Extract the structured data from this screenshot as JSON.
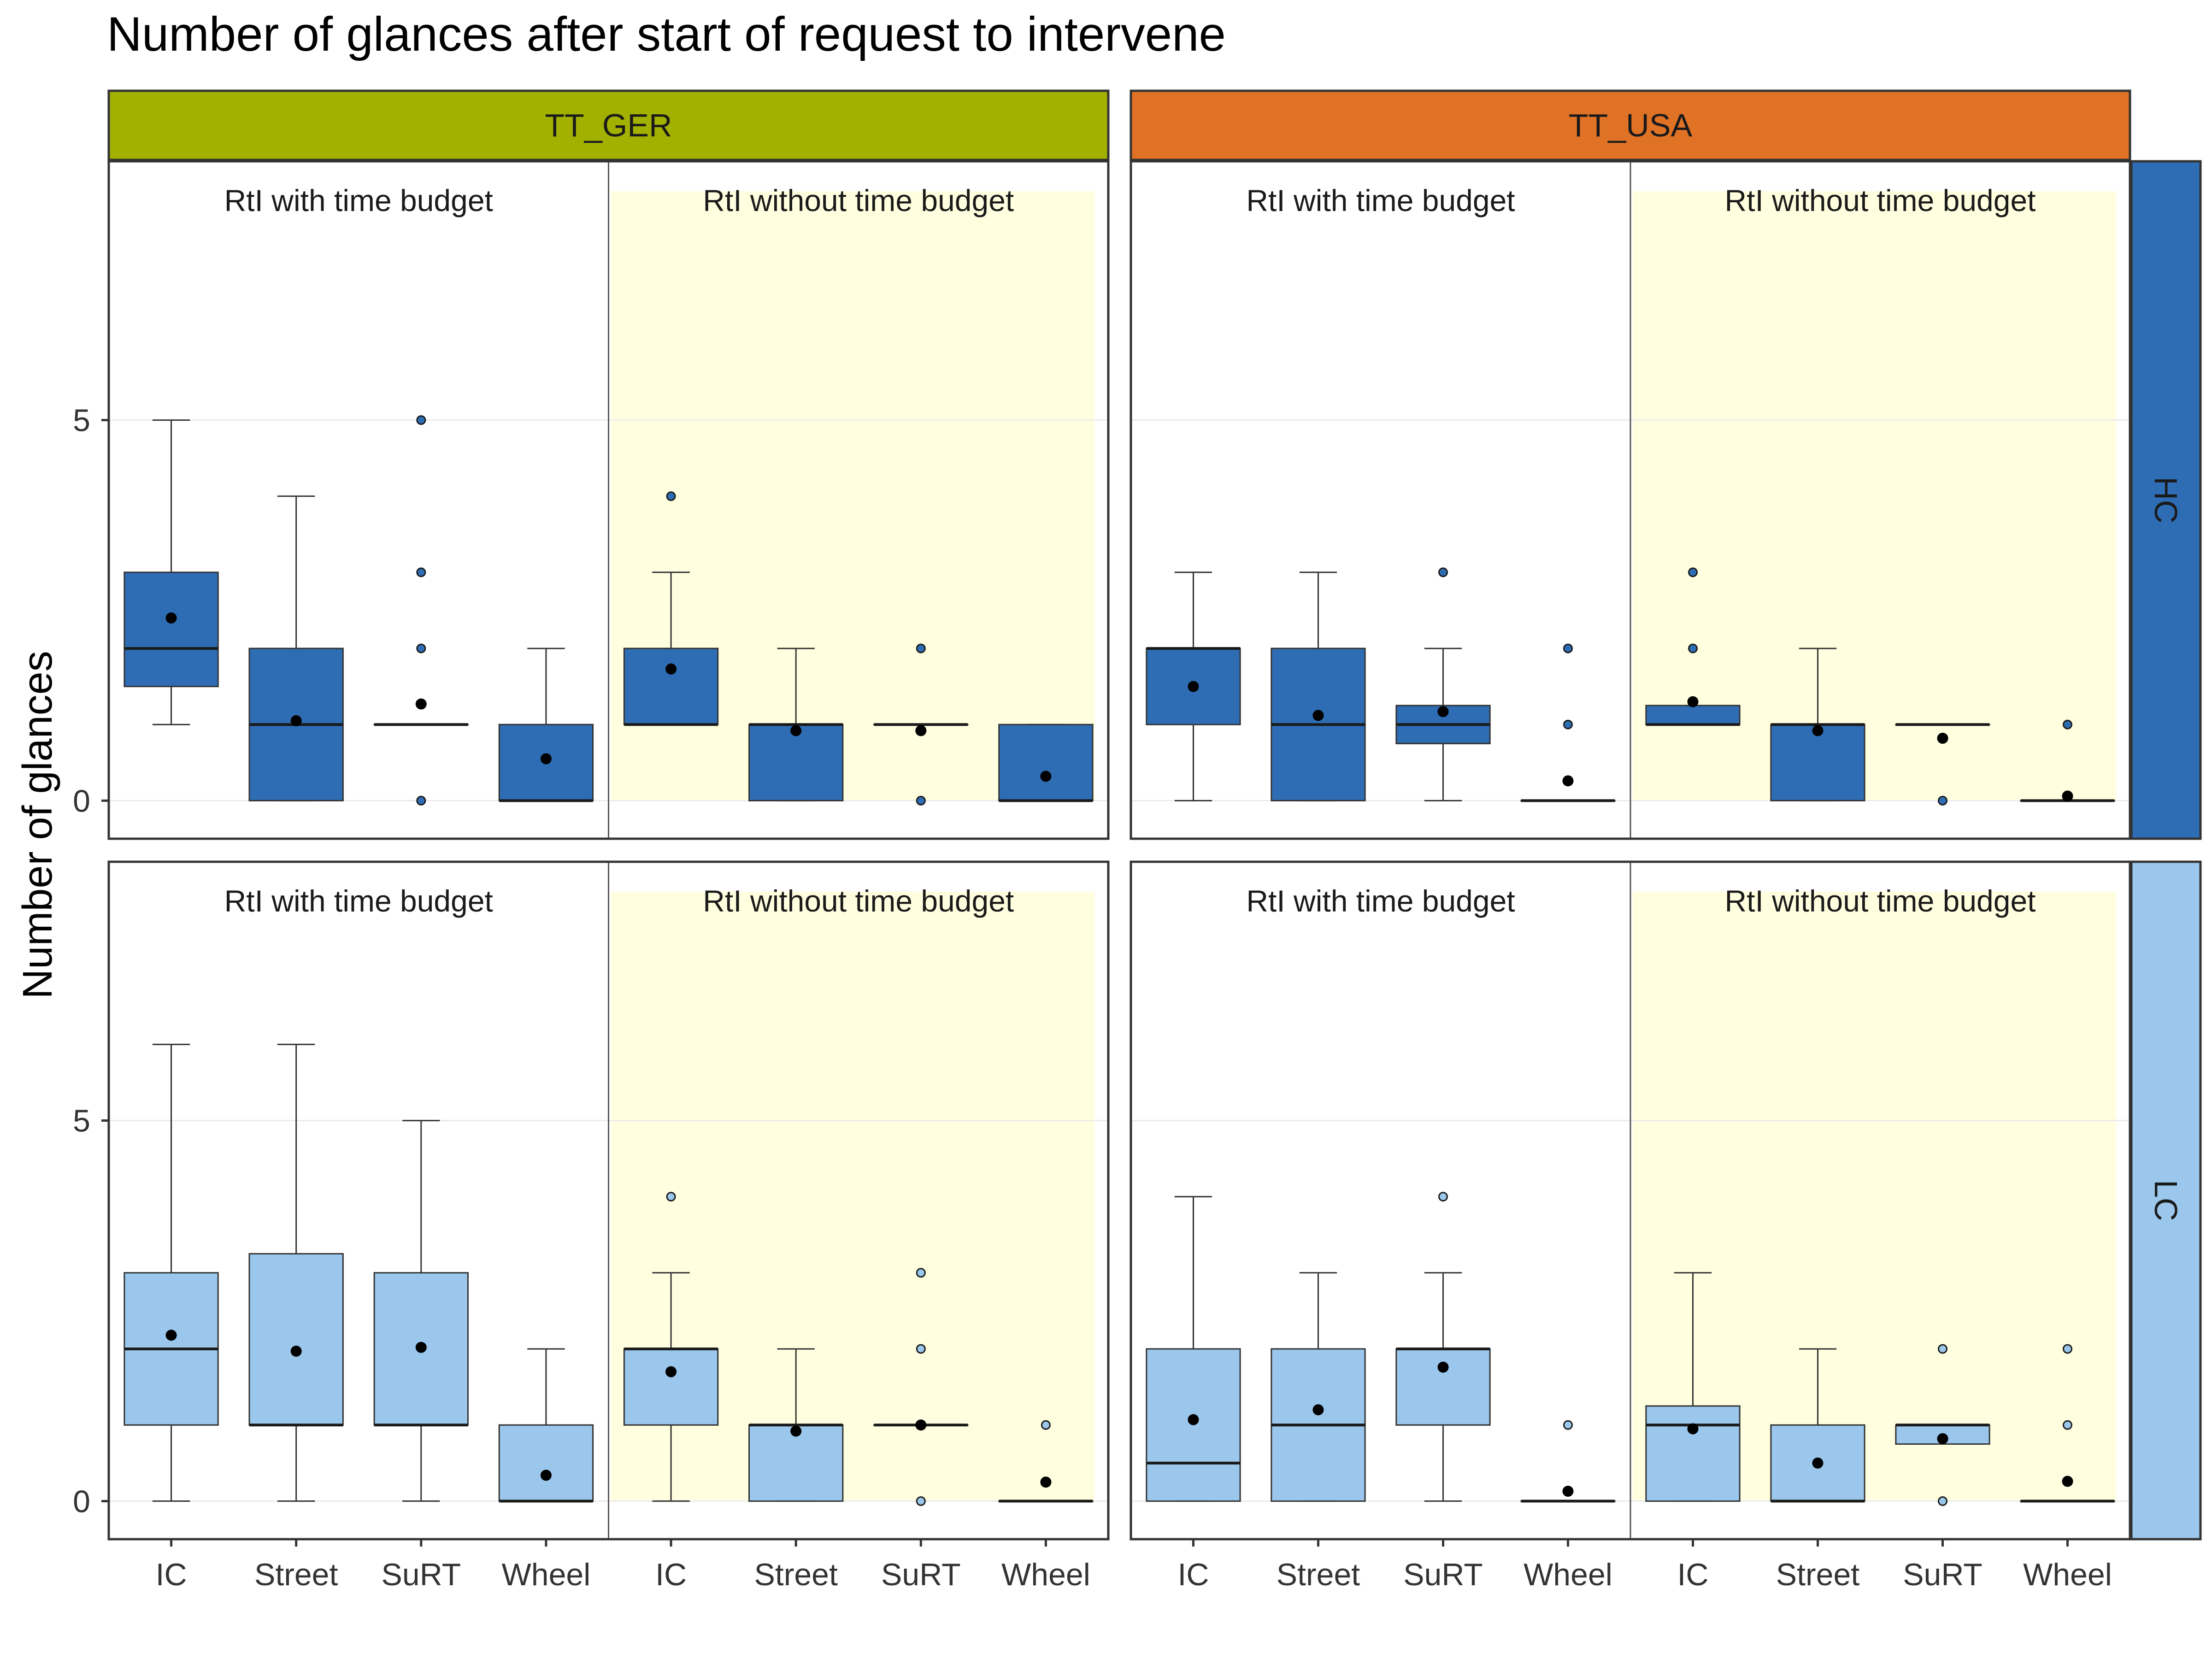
{
  "title": "Number of glances after start of request to intervene",
  "ylabel": "Number of glances",
  "colors": {
    "strip_TT_GER": "#A2B000",
    "strip_TT_USA": "#E07226",
    "strip_HC": "#2E6DB4",
    "strip_LC": "#9BC7EC",
    "fill_HC": "#2E6DB4",
    "fill_LC": "#9BC7EC",
    "shade_without_budget": "#FFFFE0",
    "panel_border": "#333333"
  },
  "chart_data": {
    "type": "boxplot",
    "title": "Number of glances after start of request to intervene",
    "ylabel": "Number of glances",
    "xlabel": "",
    "columns": [
      "TT_GER",
      "TT_USA"
    ],
    "rows": [
      "HC",
      "LC"
    ],
    "subpanels": [
      "RtI with time budget",
      "RtI without time budget"
    ],
    "categories": [
      "IC",
      "Street",
      "SuRT",
      "Wheel"
    ],
    "yticks": [
      0,
      5
    ],
    "ylim": [
      -0.5,
      8.4
    ],
    "grid": true,
    "panels": [
      {
        "column": "TT_GER",
        "row": "HC",
        "groups": [
          {
            "subpanel": "RtI with time budget",
            "boxes": [
              {
                "category": "IC",
                "q1": 1.5,
                "median": 2,
                "q3": 3,
                "whisker_low": 1,
                "whisker_high": 5,
                "mean": 2.4,
                "outliers": []
              },
              {
                "category": "Street",
                "q1": 0,
                "median": 1,
                "q3": 2,
                "whisker_low": 0,
                "whisker_high": 4,
                "mean": 1.05,
                "outliers": []
              },
              {
                "category": "SuRT",
                "q1": 1,
                "median": 1,
                "q3": 1,
                "whisker_low": 1,
                "whisker_high": 1,
                "mean": 1.27,
                "outliers": [
                  0,
                  2,
                  3,
                  5
                ]
              },
              {
                "category": "Wheel",
                "q1": 0,
                "median": 0,
                "q3": 1,
                "whisker_low": 0,
                "whisker_high": 2,
                "mean": 0.55,
                "outliers": []
              }
            ]
          },
          {
            "subpanel": "RtI without time budget",
            "boxes": [
              {
                "category": "IC",
                "q1": 1,
                "median": 1,
                "q3": 2,
                "whisker_low": 1,
                "whisker_high": 3,
                "mean": 1.73,
                "outliers": [
                  4
                ]
              },
              {
                "category": "Street",
                "q1": 0,
                "median": 1,
                "q3": 1,
                "whisker_low": 0,
                "whisker_high": 2,
                "mean": 0.92,
                "outliers": []
              },
              {
                "category": "SuRT",
                "q1": 1,
                "median": 1,
                "q3": 1,
                "whisker_low": 1,
                "whisker_high": 1,
                "mean": 0.92,
                "outliers": [
                  0,
                  2
                ]
              },
              {
                "category": "Wheel",
                "q1": 0,
                "median": 0,
                "q3": 1,
                "whisker_low": 0,
                "whisker_high": 1,
                "mean": 0.32,
                "outliers": []
              }
            ]
          }
        ]
      },
      {
        "column": "TT_USA",
        "row": "HC",
        "groups": [
          {
            "subpanel": "RtI with time budget",
            "boxes": [
              {
                "category": "IC",
                "q1": 1,
                "median": 2,
                "q3": 2,
                "whisker_low": 0,
                "whisker_high": 3,
                "mean": 1.5,
                "outliers": []
              },
              {
                "category": "Street",
                "q1": 0,
                "median": 1,
                "q3": 2,
                "whisker_low": 0,
                "whisker_high": 3,
                "mean": 1.12,
                "outliers": []
              },
              {
                "category": "SuRT",
                "q1": 0.75,
                "median": 1,
                "q3": 1.25,
                "whisker_low": 0,
                "whisker_high": 2,
                "mean": 1.17,
                "outliers": [
                  3
                ]
              },
              {
                "category": "Wheel",
                "q1": 0,
                "median": 0,
                "q3": 0,
                "whisker_low": 0,
                "whisker_high": 0,
                "mean": 0.26,
                "outliers": [
                  1,
                  2
                ]
              }
            ]
          },
          {
            "subpanel": "RtI without time budget",
            "boxes": [
              {
                "category": "IC",
                "q1": 1,
                "median": 1,
                "q3": 1.25,
                "whisker_low": 1,
                "whisker_high": 1.25,
                "mean": 1.3,
                "outliers": [
                  2,
                  3
                ]
              },
              {
                "category": "Street",
                "q1": 0,
                "median": 1,
                "q3": 1,
                "whisker_low": 0,
                "whisker_high": 2,
                "mean": 0.92,
                "outliers": []
              },
              {
                "category": "SuRT",
                "q1": 1,
                "median": 1,
                "q3": 1,
                "whisker_low": 1,
                "whisker_high": 1,
                "mean": 0.82,
                "outliers": [
                  0
                ]
              },
              {
                "category": "Wheel",
                "q1": 0,
                "median": 0,
                "q3": 0,
                "whisker_low": 0,
                "whisker_high": 0,
                "mean": 0.06,
                "outliers": [
                  1
                ]
              }
            ]
          }
        ]
      },
      {
        "column": "TT_GER",
        "row": "LC",
        "groups": [
          {
            "subpanel": "RtI with time budget",
            "boxes": [
              {
                "category": "IC",
                "q1": 1,
                "median": 2,
                "q3": 3,
                "whisker_low": 0,
                "whisker_high": 6,
                "mean": 2.18,
                "outliers": []
              },
              {
                "category": "Street",
                "q1": 1,
                "median": 1,
                "q3": 3.25,
                "whisker_low": 0,
                "whisker_high": 6,
                "mean": 1.97,
                "outliers": []
              },
              {
                "category": "SuRT",
                "q1": 1,
                "median": 1,
                "q3": 3,
                "whisker_low": 0,
                "whisker_high": 5,
                "mean": 2.02,
                "outliers": []
              },
              {
                "category": "Wheel",
                "q1": 0,
                "median": 0,
                "q3": 1,
                "whisker_low": 0,
                "whisker_high": 2,
                "mean": 0.34,
                "outliers": []
              }
            ]
          },
          {
            "subpanel": "RtI without time budget",
            "boxes": [
              {
                "category": "IC",
                "q1": 1,
                "median": 2,
                "q3": 2,
                "whisker_low": 0,
                "whisker_high": 3,
                "mean": 1.7,
                "outliers": [
                  4
                ]
              },
              {
                "category": "Street",
                "q1": 0,
                "median": 1,
                "q3": 1,
                "whisker_low": 0,
                "whisker_high": 2,
                "mean": 0.92,
                "outliers": []
              },
              {
                "category": "SuRT",
                "q1": 1,
                "median": 1,
                "q3": 1,
                "whisker_low": 1,
                "whisker_high": 1,
                "mean": 1,
                "outliers": [
                  0,
                  2,
                  3
                ]
              },
              {
                "category": "Wheel",
                "q1": 0,
                "median": 0,
                "q3": 0,
                "whisker_low": 0,
                "whisker_high": 0,
                "mean": 0.25,
                "outliers": [
                  1
                ]
              }
            ]
          }
        ]
      },
      {
        "column": "TT_USA",
        "row": "LC",
        "groups": [
          {
            "subpanel": "RtI with time budget",
            "boxes": [
              {
                "category": "IC",
                "q1": 0,
                "median": 0.5,
                "q3": 2,
                "whisker_low": 0,
                "whisker_high": 4,
                "mean": 1.07,
                "outliers": []
              },
              {
                "category": "Street",
                "q1": 0,
                "median": 1,
                "q3": 2,
                "whisker_low": 0,
                "whisker_high": 3,
                "mean": 1.2,
                "outliers": []
              },
              {
                "category": "SuRT",
                "q1": 1,
                "median": 2,
                "q3": 2,
                "whisker_low": 0,
                "whisker_high": 3,
                "mean": 1.76,
                "outliers": [
                  4
                ]
              },
              {
                "category": "Wheel",
                "q1": 0,
                "median": 0,
                "q3": 0,
                "whisker_low": 0,
                "whisker_high": 0,
                "mean": 0.13,
                "outliers": [
                  1
                ]
              }
            ]
          },
          {
            "subpanel": "RtI without time budget",
            "boxes": [
              {
                "category": "IC",
                "q1": 0,
                "median": 1,
                "q3": 1.25,
                "whisker_low": 0,
                "whisker_high": 3,
                "mean": 0.95,
                "outliers": []
              },
              {
                "category": "Street",
                "q1": 0,
                "median": 0,
                "q3": 1,
                "whisker_low": 0,
                "whisker_high": 2,
                "mean": 0.5,
                "outliers": []
              },
              {
                "category": "SuRT",
                "q1": 0.75,
                "median": 1,
                "q3": 1,
                "whisker_low": 0.75,
                "whisker_high": 1,
                "mean": 0.82,
                "outliers": [
                  0,
                  2
                ]
              },
              {
                "category": "Wheel",
                "q1": 0,
                "median": 0,
                "q3": 0,
                "whisker_low": 0,
                "whisker_high": 0,
                "mean": 0.26,
                "outliers": [
                  1,
                  2
                ]
              }
            ]
          }
        ]
      }
    ]
  }
}
